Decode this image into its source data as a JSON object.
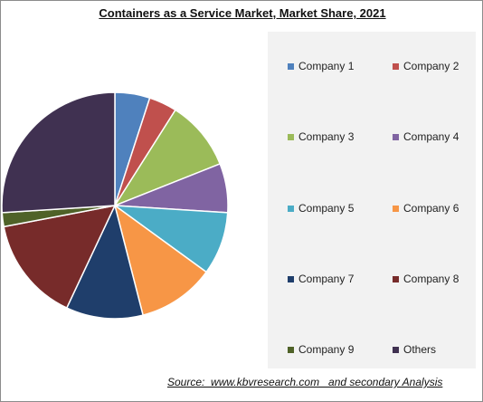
{
  "title": "Containers as a Service Market, Market Share, 2021",
  "source": "Source:  www.kbvresearch.com   and secondary Analysis",
  "chart_data": {
    "type": "pie",
    "title": "Containers as a Service Market, Market Share, 2021",
    "start_angle_deg": 0,
    "direction": "clockwise",
    "legend_position": "right",
    "slices": [
      {
        "label": "Company 1",
        "value": 5,
        "color": "#4f81bd"
      },
      {
        "label": "Company 2",
        "value": 4,
        "color": "#c0504d"
      },
      {
        "label": "Company 3",
        "value": 10,
        "color": "#9bbb59"
      },
      {
        "label": "Company 4",
        "value": 7,
        "color": "#8064a2"
      },
      {
        "label": "Company 5",
        "value": 9,
        "color": "#4bacc6"
      },
      {
        "label": "Company 6",
        "value": 11,
        "color": "#f79646"
      },
      {
        "label": "Company 7",
        "value": 11,
        "color": "#1f3e6b"
      },
      {
        "label": "Company 8",
        "value": 15,
        "color": "#772b2a"
      },
      {
        "label": "Company 9",
        "value": 2,
        "color": "#4f6228"
      },
      {
        "label": "Others",
        "value": 26,
        "color": "#403151"
      }
    ]
  }
}
